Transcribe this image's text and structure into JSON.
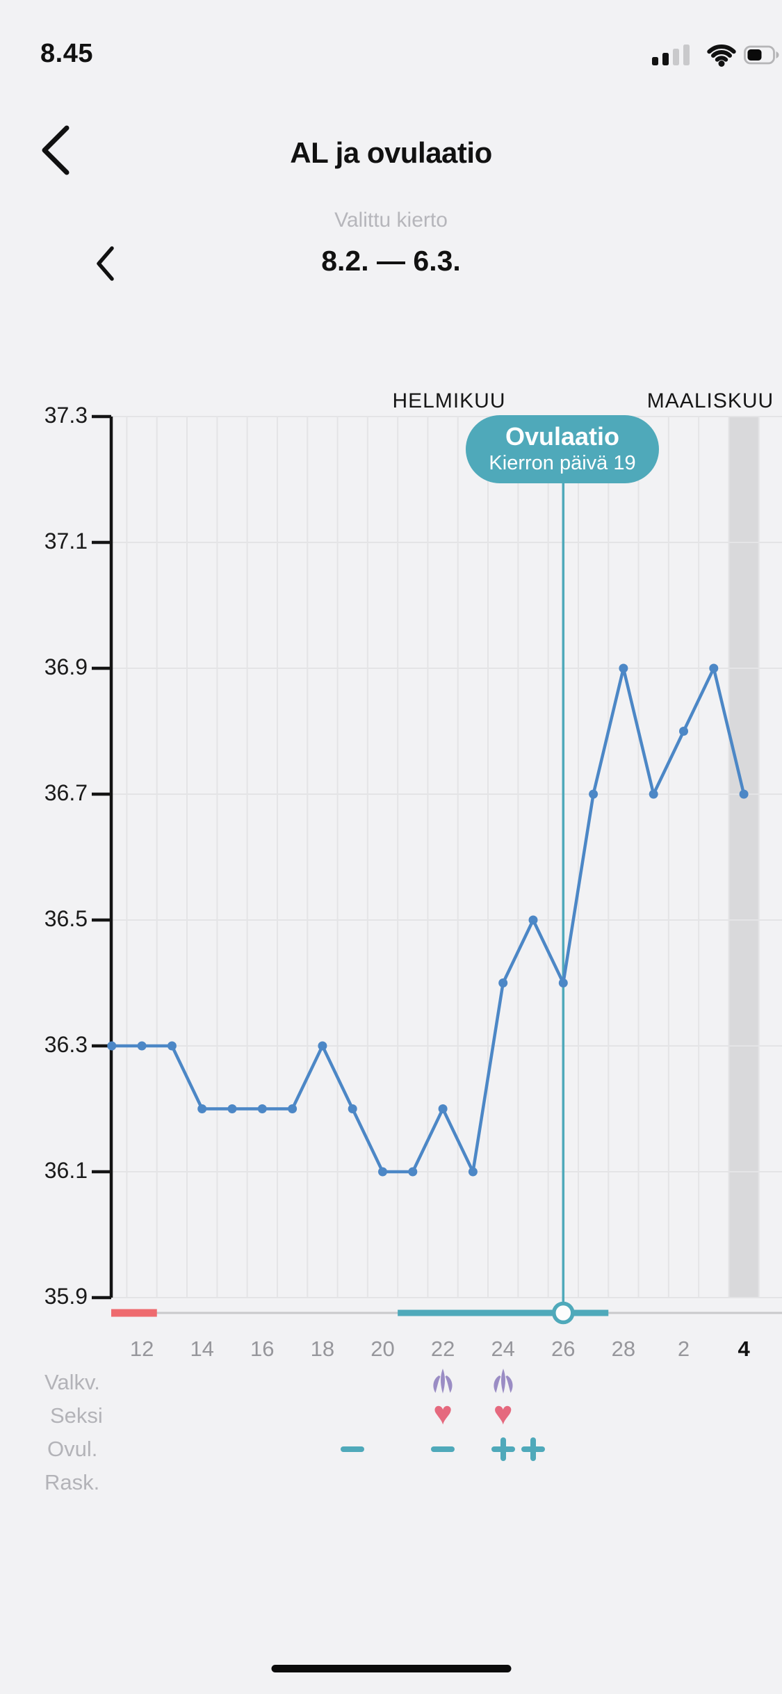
{
  "status_bar": {
    "time": "8.45"
  },
  "header": {
    "title": "AL ja ovulaatio"
  },
  "cycle_selector": {
    "label": "Valittu kierto",
    "range": "8.2. — 6.3."
  },
  "chart": {
    "months": [
      "HELMIKUU",
      "MAALISKUU"
    ],
    "badge": {
      "title": "Ovulaatio",
      "subtitle": "Kierron päivä 19"
    }
  },
  "rows": [
    {
      "key": "cervical_mucus",
      "label": "Valkv."
    },
    {
      "key": "sex",
      "label": "Seksi"
    },
    {
      "key": "ovulation_test",
      "label": "Ovul."
    },
    {
      "key": "pregnancy_test",
      "label": "Rask."
    }
  ],
  "icons": {
    "heart": "♥"
  },
  "colors": {
    "accent_teal": "#4fa9ba",
    "line_blue": "#4c87c6",
    "menstruation_red": "#ee6a6e",
    "heart_pink": "#e5697e",
    "mucus_purple": "#9a8cc4",
    "today_band_gray": "#d9d9db",
    "gridline": "#e4e4e6",
    "axis": "#141414",
    "timeline_gray": "#c9c9cb"
  },
  "chart_data": {
    "type": "line",
    "title": "AL ja ovulaatio",
    "x": [
      "11.2.",
      "12.2.",
      "13.2.",
      "14.2.",
      "15.2.",
      "16.2.",
      "17.2.",
      "18.2.",
      "19.2.",
      "20.2.",
      "21.2.",
      "22.2.",
      "23.2.",
      "24.2.",
      "25.2.",
      "26.2.",
      "27.2.",
      "28.2.",
      "1.3.",
      "2.3.",
      "3.3.",
      "4.3."
    ],
    "series": [
      {
        "name": "temperature_celsius",
        "values": [
          36.3,
          36.3,
          36.3,
          36.2,
          36.2,
          36.2,
          36.2,
          36.3,
          36.2,
          36.1,
          36.1,
          36.2,
          36.1,
          36.4,
          36.5,
          36.4,
          36.7,
          36.9,
          36.7,
          36.8,
          36.9,
          36.7
        ]
      }
    ],
    "ylim": [
      35.9,
      37.3
    ],
    "y_ticks": [
      "37.3",
      "37.1",
      "36.9",
      "36.7",
      "36.5",
      "36.3",
      "36.1",
      "35.9"
    ],
    "x_ticks": [
      {
        "label": "12",
        "date": "12.2."
      },
      {
        "label": "14",
        "date": "14.2."
      },
      {
        "label": "16",
        "date": "16.2."
      },
      {
        "label": "18",
        "date": "18.2."
      },
      {
        "label": "20",
        "date": "20.2."
      },
      {
        "label": "22",
        "date": "22.2."
      },
      {
        "label": "24",
        "date": "24.2."
      },
      {
        "label": "26",
        "date": "26.2."
      },
      {
        "label": "28",
        "date": "28.2."
      },
      {
        "label": "2",
        "date": "2.3."
      },
      {
        "label": "4",
        "date": "4.3."
      }
    ],
    "grid": true,
    "legend": false,
    "annotations": {
      "ovulation": {
        "date": "26.2.",
        "cycle_day": 19,
        "title": "Ovulaatio",
        "subtitle": "Kierron päivä 19"
      },
      "menstruation_dates": [
        "11.2.",
        "12.2."
      ],
      "fertile_window": {
        "start": "21.2.",
        "end": "27.2."
      },
      "today": {
        "date": "4.3.",
        "x_label": "4"
      },
      "cervical_mucus_dates": [
        "22.2.",
        "24.2."
      ],
      "sex_dates": [
        "22.2.",
        "24.2."
      ],
      "ovulation_tests": [
        {
          "date": "19.2.",
          "result": "negative"
        },
        {
          "date": "22.2.",
          "result": "negative"
        },
        {
          "date": "24.2.",
          "result": "positive"
        },
        {
          "date": "25.2.",
          "result": "positive"
        }
      ],
      "pregnancy_tests": []
    }
  }
}
